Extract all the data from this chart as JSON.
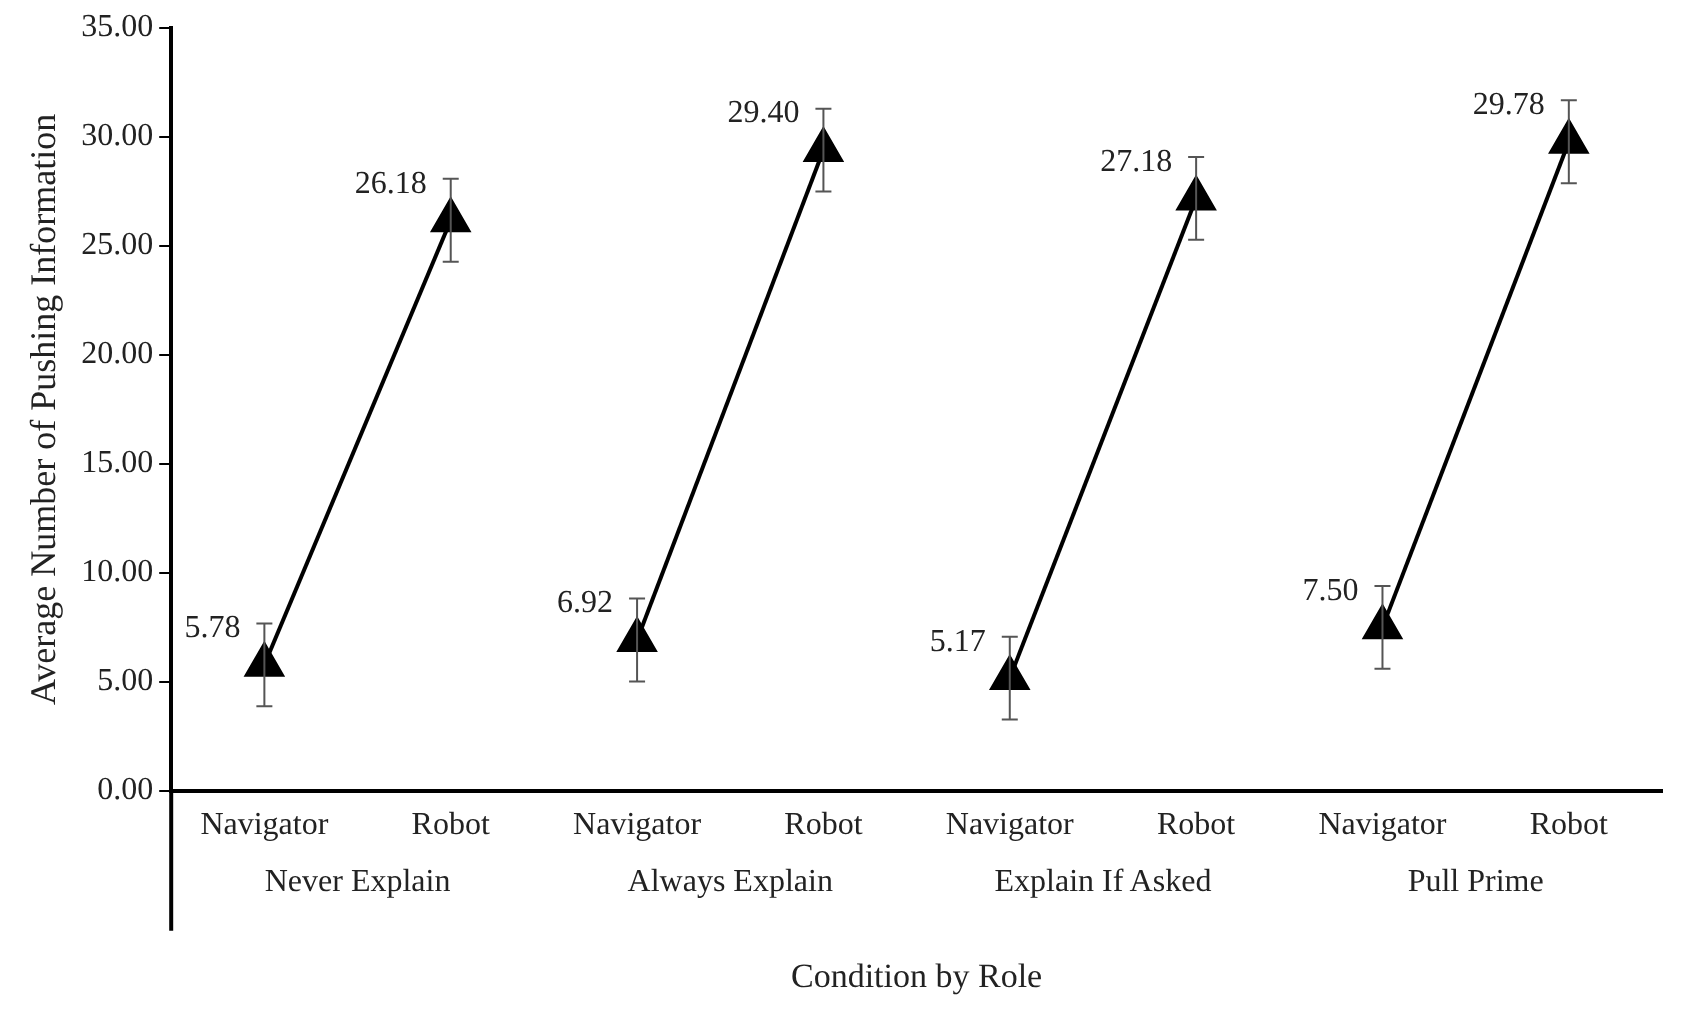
{
  "chart_data": {
    "type": "line",
    "ylabel": "Average Number of Pushing Information",
    "xlabel": "Condition by Role",
    "categories": [
      "Navigator",
      "Robot",
      "Navigator",
      "Robot",
      "Navigator",
      "Robot",
      "Navigator",
      "Robot"
    ],
    "series": [
      {
        "color": "#000000",
        "values": [
          5.78,
          26.18,
          null,
          null,
          null,
          null,
          null,
          null
        ],
        "errors": [
          1.9,
          1.9,
          null,
          null,
          null,
          null,
          null,
          null
        ],
        "value_labels": [
          "5.78",
          "26.18",
          null,
          null,
          null,
          null,
          null,
          null
        ]
      },
      {
        "color": "#000000",
        "values": [
          null,
          null,
          6.92,
          29.4,
          null,
          null,
          null,
          null
        ],
        "errors": [
          null,
          null,
          1.9,
          1.9,
          null,
          null,
          null,
          null
        ],
        "value_labels": [
          null,
          null,
          "6.92",
          "29.40",
          null,
          null,
          null,
          null
        ]
      },
      {
        "color": "#000000",
        "values": [
          null,
          null,
          null,
          null,
          5.17,
          27.18,
          null,
          null
        ],
        "errors": [
          null,
          null,
          null,
          null,
          1.9,
          1.9,
          null,
          null
        ],
        "value_labels": [
          null,
          null,
          null,
          null,
          "5.17",
          "27.18",
          null,
          null
        ]
      },
      {
        "color": "#000000",
        "values": [
          null,
          null,
          null,
          null,
          null,
          null,
          7.5,
          29.78
        ],
        "errors": [
          null,
          null,
          null,
          null,
          null,
          null,
          1.9,
          1.9
        ],
        "value_labels": [
          null,
          null,
          null,
          null,
          null,
          null,
          "7.50",
          "29.78"
        ]
      }
    ],
    "annotations": [
      "Never Explain",
      "Always Explain",
      "Explain If Asked",
      "Pull Prime"
    ],
    "ylim": [
      0,
      35
    ],
    "yticks": [
      {
        "value": 0,
        "label": "0.00"
      },
      {
        "value": 5,
        "label": "5.00"
      },
      {
        "value": 10,
        "label": "10.00"
      },
      {
        "value": 15,
        "label": "15.00"
      },
      {
        "value": 20,
        "label": "20.00"
      },
      {
        "value": 25,
        "label": "25.00"
      },
      {
        "value": 30,
        "label": "30.00"
      },
      {
        "value": 35,
        "label": "35.00"
      }
    ],
    "marker": "triangle",
    "line_style": "solid",
    "grid": false,
    "legend": false
  }
}
